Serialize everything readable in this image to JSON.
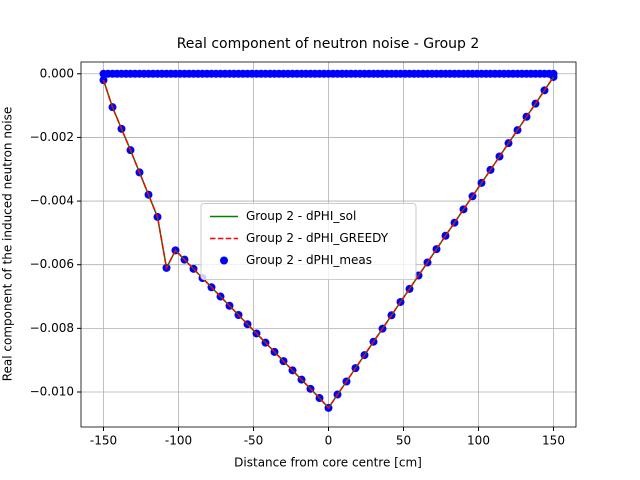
{
  "chart_data": {
    "type": "line",
    "title": "Real component of neutron noise - Group 2",
    "x_label": "Distance from core centre [cm]",
    "y_label": "Real component of the induced neutron noise",
    "xlim": [
      -165,
      165
    ],
    "ylim": [
      -0.0111,
      0.00037
    ],
    "xticks": [
      -150,
      -100,
      -50,
      0,
      50,
      100,
      150
    ],
    "yticks": [
      {
        "value": 0,
        "label": "0.000"
      },
      {
        "value": -0.002,
        "label": "−0.002"
      },
      {
        "value": -0.004,
        "label": "−0.004"
      },
      {
        "value": -0.006,
        "label": "−0.006"
      },
      {
        "value": -0.008,
        "label": "−0.008"
      },
      {
        "value": -0.01,
        "label": "−0.010"
      }
    ],
    "grid": true,
    "legend_loc": "center",
    "series": [
      {
        "name": "Group 2 - dPHI_sol",
        "color": "green",
        "style": "solid",
        "kind": "line",
        "x": [
          -150,
          -144,
          -138,
          -132,
          -126,
          -120,
          -114,
          -108,
          -102,
          -96,
          -90,
          -84,
          -78,
          -72,
          -66,
          -60,
          -54,
          -48,
          -42,
          -36,
          -30,
          -24,
          -18,
          -12,
          -6,
          0,
          6,
          12,
          18,
          24,
          30,
          36,
          42,
          48,
          54,
          60,
          66,
          72,
          78,
          84,
          90,
          96,
          102,
          108,
          114,
          120,
          126,
          132,
          138,
          144,
          150
        ],
        "values": [
          -0.0002,
          -0.00105,
          -0.00173,
          -0.0024,
          -0.0031,
          -0.0038,
          -0.0045,
          -0.0061,
          -0.00555,
          -0.00584,
          -0.00613,
          -0.00642,
          -0.00671,
          -0.007,
          -0.00729,
          -0.00758,
          -0.00787,
          -0.00816,
          -0.00845,
          -0.00874,
          -0.00903,
          -0.00932,
          -0.00961,
          -0.0099,
          -0.01019,
          -0.0105,
          -0.01008,
          -0.00967,
          -0.00925,
          -0.00884,
          -0.00842,
          -0.00801,
          -0.00759,
          -0.00717,
          -0.00676,
          -0.00634,
          -0.00593,
          -0.00551,
          -0.00509,
          -0.00468,
          -0.00426,
          -0.00385,
          -0.00343,
          -0.00302,
          -0.0026,
          -0.00218,
          -0.00177,
          -0.00135,
          -0.00094,
          -0.00052,
          -0.0001
        ]
      },
      {
        "name": "Group 2 - dPHI_GREEDY",
        "color": "red",
        "style": "dashed",
        "kind": "line",
        "x": [
          -150,
          -144,
          -138,
          -132,
          -126,
          -120,
          -114,
          -108,
          -102,
          -96,
          -90,
          -84,
          -78,
          -72,
          -66,
          -60,
          -54,
          -48,
          -42,
          -36,
          -30,
          -24,
          -18,
          -12,
          -6,
          0,
          6,
          12,
          18,
          24,
          30,
          36,
          42,
          48,
          54,
          60,
          66,
          72,
          78,
          84,
          90,
          96,
          102,
          108,
          114,
          120,
          126,
          132,
          138,
          144,
          150
        ],
        "values": [
          -0.0002,
          -0.00105,
          -0.00173,
          -0.0024,
          -0.0031,
          -0.0038,
          -0.0045,
          -0.0061,
          -0.00555,
          -0.00584,
          -0.00613,
          -0.00642,
          -0.00671,
          -0.007,
          -0.00729,
          -0.00758,
          -0.00787,
          -0.00816,
          -0.00845,
          -0.00874,
          -0.00903,
          -0.00932,
          -0.00961,
          -0.0099,
          -0.01019,
          -0.0105,
          -0.01008,
          -0.00967,
          -0.00925,
          -0.00884,
          -0.00842,
          -0.00801,
          -0.00759,
          -0.00717,
          -0.00676,
          -0.00634,
          -0.00593,
          -0.00551,
          -0.00509,
          -0.00468,
          -0.00426,
          -0.00385,
          -0.00343,
          -0.00302,
          -0.0026,
          -0.00218,
          -0.00177,
          -0.00135,
          -0.00094,
          -0.00052,
          -0.0001
        ]
      },
      {
        "name": "Group 2 - dPHI_meas",
        "color": "blue",
        "kind": "scatter",
        "x": [
          -150,
          -144,
          -138,
          -132,
          -126,
          -120,
          -114,
          -108,
          -102,
          -96,
          -90,
          -84,
          -78,
          -72,
          -66,
          -60,
          -54,
          -48,
          -42,
          -36,
          -30,
          -24,
          -18,
          -12,
          -6,
          0,
          6,
          12,
          18,
          24,
          30,
          36,
          42,
          48,
          54,
          60,
          66,
          72,
          78,
          84,
          90,
          96,
          102,
          108,
          114,
          120,
          126,
          132,
          138,
          144,
          150
        ],
        "values": [
          -0.0002,
          -0.00105,
          -0.00173,
          -0.0024,
          -0.0031,
          -0.0038,
          -0.0045,
          -0.0061,
          -0.00555,
          -0.00584,
          -0.00613,
          -0.00642,
          -0.00671,
          -0.007,
          -0.00729,
          -0.00758,
          -0.00787,
          -0.00816,
          -0.00845,
          -0.00874,
          -0.00903,
          -0.00932,
          -0.00961,
          -0.0099,
          -0.01019,
          -0.0105,
          -0.01008,
          -0.00967,
          -0.00925,
          -0.00884,
          -0.00842,
          -0.00801,
          -0.00759,
          -0.00717,
          -0.00676,
          -0.00634,
          -0.00593,
          -0.00551,
          -0.00509,
          -0.00468,
          -0.00426,
          -0.00385,
          -0.00343,
          -0.00302,
          -0.0026,
          -0.00218,
          -0.00177,
          -0.00135,
          -0.00094,
          -0.00052,
          -0.0001
        ]
      },
      {
        "color": "blue",
        "kind": "scatter",
        "x": [
          -150,
          -147,
          -144,
          -141,
          -138,
          -135,
          -132,
          -129,
          -126,
          -123,
          -120,
          -117,
          -114,
          -111,
          -108,
          -105,
          -102,
          -99,
          -96,
          -93,
          -90,
          -87,
          -84,
          -81,
          -78,
          -75,
          -72,
          -69,
          -66,
          -63,
          -60,
          -57,
          -54,
          -51,
          -48,
          -45,
          -42,
          -39,
          -36,
          -33,
          -30,
          -27,
          -24,
          -21,
          -18,
          -15,
          -12,
          -9,
          -6,
          -3,
          0,
          3,
          6,
          9,
          12,
          15,
          18,
          21,
          24,
          27,
          30,
          33,
          36,
          39,
          42,
          45,
          48,
          51,
          54,
          57,
          60,
          63,
          66,
          69,
          72,
          75,
          78,
          81,
          84,
          87,
          90,
          93,
          96,
          99,
          102,
          105,
          108,
          111,
          114,
          117,
          120,
          123,
          126,
          129,
          132,
          135,
          138,
          141,
          144,
          147,
          150
        ],
        "values": [
          0,
          0,
          0,
          0,
          0,
          0,
          0,
          0,
          0,
          0,
          0,
          0,
          0,
          0,
          0,
          0,
          0,
          0,
          0,
          0,
          0,
          0,
          0,
          0,
          0,
          0,
          0,
          0,
          0,
          0,
          0,
          0,
          0,
          0,
          0,
          0,
          0,
          0,
          0,
          0,
          0,
          0,
          0,
          0,
          0,
          0,
          0,
          0,
          0,
          0,
          0,
          0,
          0,
          0,
          0,
          0,
          0,
          0,
          0,
          0,
          0,
          0,
          0,
          0,
          0,
          0,
          0,
          0,
          0,
          0,
          0,
          0,
          0,
          0,
          0,
          0,
          0,
          0,
          0,
          0,
          0,
          0,
          0,
          0,
          0,
          0,
          0,
          0,
          0,
          0,
          0,
          0,
          0,
          0,
          0,
          0,
          0,
          0,
          0,
          0,
          0
        ]
      }
    ]
  }
}
